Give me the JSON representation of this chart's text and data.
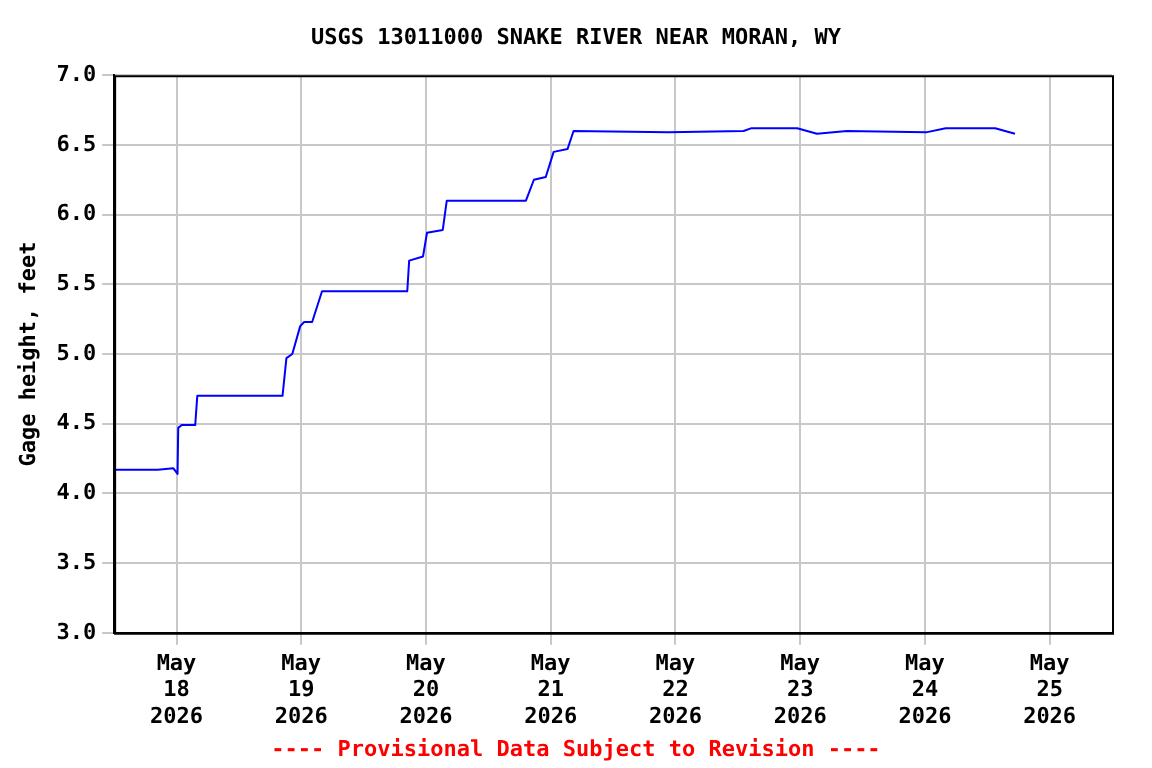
{
  "chart_data": {
    "type": "line",
    "title": "USGS 13011000 SNAKE RIVER NEAR MORAN, WY",
    "ylabel": "Gage height, feet",
    "annotations": [
      "---- Provisional Data Subject to Revision ----"
    ],
    "x": [
      "2026-05-17T12:00",
      "2026-05-17T20:24",
      "2026-05-17T23:25",
      "2026-05-18T00:12",
      "2026-05-18T00:20",
      "2026-05-18T01:00",
      "2026-05-18T03:36",
      "2026-05-18T04:00",
      "2026-05-18T20:24",
      "2026-05-18T21:09",
      "2026-05-18T22:17",
      "2026-05-18T23:48",
      "2026-05-19T00:34",
      "2026-05-19T02:06",
      "2026-05-19T04:00",
      "2026-05-19T20:24",
      "2026-05-19T20:46",
      "2026-05-19T23:26",
      "2026-05-20T00:12",
      "2026-05-20T03:14",
      "2026-05-20T04:00",
      "2026-05-20T19:14",
      "2026-05-20T20:46",
      "2026-05-20T23:03",
      "2026-05-21T00:34",
      "2026-05-21T03:14",
      "2026-05-21T04:24",
      "2026-05-21T22:40",
      "2026-05-22T13:07",
      "2026-05-22T14:39",
      "2026-05-22T23:26",
      "2026-05-23T03:14",
      "2026-05-23T09:00",
      "2026-05-24T00:12",
      "2026-05-24T04:00",
      "2026-05-24T13:31",
      "2026-05-24T17:20"
    ],
    "series": [
      {
        "color": "#0000ff",
        "values": [
          4.17,
          4.17,
          4.18,
          4.14,
          4.47,
          4.49,
          4.49,
          4.7,
          4.7,
          4.97,
          5.0,
          5.2,
          5.23,
          5.23,
          5.45,
          5.45,
          5.67,
          5.7,
          5.87,
          5.89,
          6.1,
          6.1,
          6.25,
          6.27,
          6.45,
          6.47,
          6.6,
          6.59,
          6.6,
          6.62,
          6.62,
          6.58,
          6.6,
          6.59,
          6.62,
          6.62,
          6.58
        ]
      }
    ],
    "xlim": [
      "2026-05-17T12:00",
      "2026-05-25T12:00"
    ],
    "xticks": [
      {
        "value": "2026-05-18",
        "label": "May 18 2026"
      },
      {
        "value": "2026-05-19",
        "label": "May 19 2026"
      },
      {
        "value": "2026-05-20",
        "label": "May 20 2026"
      },
      {
        "value": "2026-05-21",
        "label": "May 21 2026"
      },
      {
        "value": "2026-05-22",
        "label": "May 22 2026"
      },
      {
        "value": "2026-05-23",
        "label": "May 23 2026"
      },
      {
        "value": "2026-05-24",
        "label": "May 24 2026"
      },
      {
        "value": "2026-05-25",
        "label": "May 25 2026"
      }
    ],
    "ylim": [
      3.0,
      7.0
    ],
    "yticks": [
      {
        "value": 3,
        "label": "3.0"
      },
      {
        "value": 3.5,
        "label": "3.5"
      },
      {
        "value": 4,
        "label": "4.0"
      },
      {
        "value": 4.5,
        "label": "4.5"
      },
      {
        "value": 5,
        "label": "5.0"
      },
      {
        "value": 5.5,
        "label": "5.5"
      },
      {
        "value": 6,
        "label": "6.0"
      },
      {
        "value": 6.5,
        "label": "6.5"
      },
      {
        "value": 7,
        "label": "7.0"
      }
    ],
    "grid": true,
    "legend": false,
    "marker": "none",
    "line_style": "solid"
  }
}
